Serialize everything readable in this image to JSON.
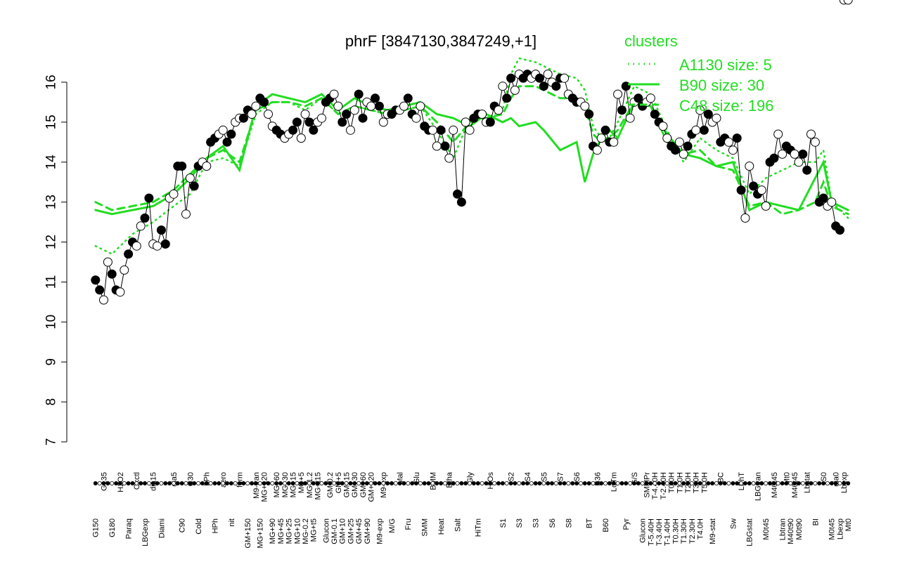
{
  "chart_data": {
    "type": "line",
    "title": "phrF [3847130,3847249,+1]",
    "xlabel": "",
    "ylabel": "",
    "ylim": [
      7,
      16.3
    ],
    "yticks": [
      7,
      8,
      9,
      10,
      11,
      12,
      13,
      14,
      15,
      16
    ],
    "grid": false,
    "legend": {
      "title": "clusters",
      "placement": "top-right",
      "entries": [
        {
          "label": "A1130 size: 5",
          "style": "dotted",
          "color": "#22dd22"
        },
        {
          "label": "B90 size: 30",
          "style": "solid",
          "color": "#22dd22"
        },
        {
          "label": "C48 size: 196",
          "style": "dashed",
          "color": "#22dd22"
        }
      ]
    },
    "x_labels": [
      {
        "label": "G150",
        "pos": 1,
        "row": 0
      },
      {
        "label": "G135",
        "pos": 3,
        "row": 1
      },
      {
        "label": "G180",
        "pos": 5,
        "row": 0
      },
      {
        "label": "H2O2",
        "pos": 7,
        "row": 1
      },
      {
        "label": "Paraq",
        "pos": 9,
        "row": 0
      },
      {
        "label": "Oxctl",
        "pos": 11,
        "row": 1
      },
      {
        "label": "LBGexp",
        "pos": 13,
        "row": 0
      },
      {
        "label": "dia15",
        "pos": 15,
        "row": 1
      },
      {
        "label": "Diami",
        "pos": 17,
        "row": 0
      },
      {
        "label": "dia5",
        "pos": 20,
        "row": 1
      },
      {
        "label": "C90",
        "pos": 22,
        "row": 0
      },
      {
        "label": "C30",
        "pos": 24,
        "row": 1
      },
      {
        "label": "Cold",
        "pos": 26,
        "row": 0
      },
      {
        "label": "LPh",
        "pos": 28,
        "row": 1
      },
      {
        "label": "HPh",
        "pos": 30,
        "row": 0
      },
      {
        "label": "aero",
        "pos": 32,
        "row": 1
      },
      {
        "label": "nit",
        "pos": 34,
        "row": 0
      },
      {
        "label": "ferm",
        "pos": 36,
        "row": 1
      },
      {
        "label": "GM+150",
        "pos": 38,
        "row": 0
      },
      {
        "label": "M9-tran",
        "pos": 40,
        "row": 1
      },
      {
        "label": "MG+150",
        "pos": 41,
        "row": 0
      },
      {
        "label": "MG+120",
        "pos": 42,
        "row": 1
      },
      {
        "label": "MG+90",
        "pos": 44,
        "row": 0
      },
      {
        "label": "MG+60",
        "pos": 45,
        "row": 1
      },
      {
        "label": "MG+45",
        "pos": 46,
        "row": 0
      },
      {
        "label": "MG+30",
        "pos": 47,
        "row": 1
      },
      {
        "label": "MG+25",
        "pos": 48,
        "row": 0
      },
      {
        "label": "MG+15",
        "pos": 49,
        "row": 1
      },
      {
        "label": "MG+10",
        "pos": 50,
        "row": 0
      },
      {
        "label": "MG+5",
        "pos": 51,
        "row": 1
      },
      {
        "label": "MG-0.2",
        "pos": 52,
        "row": 0
      },
      {
        "label": "MG-1.2",
        "pos": 53,
        "row": 1
      },
      {
        "label": "MG+t5",
        "pos": 54,
        "row": 0
      },
      {
        "label": "MG+t15",
        "pos": 55,
        "row": 1
      },
      {
        "label": "Glucon",
        "pos": 57,
        "row": 0
      },
      {
        "label": "GM-0.2",
        "pos": 58,
        "row": 1
      },
      {
        "label": "GM-0.1",
        "pos": 59,
        "row": 0
      },
      {
        "label": "GM+5",
        "pos": 60,
        "row": 1
      },
      {
        "label": "GM+10",
        "pos": 61,
        "row": 0
      },
      {
        "label": "GM+15",
        "pos": 62,
        "row": 1
      },
      {
        "label": "GM+25",
        "pos": 63,
        "row": 0
      },
      {
        "label": "GM+30",
        "pos": 64,
        "row": 1
      },
      {
        "label": "GM+45",
        "pos": 65,
        "row": 0
      },
      {
        "label": "GM+60",
        "pos": 66,
        "row": 1
      },
      {
        "label": "GM+90",
        "pos": 67,
        "row": 0
      },
      {
        "label": "GM+120",
        "pos": 68,
        "row": 1
      },
      {
        "label": "M9-exp",
        "pos": 70,
        "row": 0
      },
      {
        "label": "M9-exp",
        "pos": 71,
        "row": 1
      },
      {
        "label": "M/G",
        "pos": 73,
        "row": 0
      },
      {
        "label": "Mal",
        "pos": 75,
        "row": 1
      },
      {
        "label": "Fru",
        "pos": 77,
        "row": 0
      },
      {
        "label": "Glu",
        "pos": 79,
        "row": 1
      },
      {
        "label": "SMM",
        "pos": 81,
        "row": 0
      },
      {
        "label": "BMM",
        "pos": 83,
        "row": 1
      },
      {
        "label": "Heat",
        "pos": 85,
        "row": 0
      },
      {
        "label": "Etha",
        "pos": 87,
        "row": 1
      },
      {
        "label": "Salt",
        "pos": 89,
        "row": 0
      },
      {
        "label": "Gly",
        "pos": 92,
        "row": 1
      },
      {
        "label": "HiTm",
        "pos": 94,
        "row": 0
      },
      {
        "label": "HiOs",
        "pos": 97,
        "row": 1
      },
      {
        "label": "S1",
        "pos": 100,
        "row": 0
      },
      {
        "label": "S2",
        "pos": 102,
        "row": 1
      },
      {
        "label": "S3",
        "pos": 104,
        "row": 0
      },
      {
        "label": "S4",
        "pos": 106,
        "row": 1
      },
      {
        "label": "S3",
        "pos": 108,
        "row": 0
      },
      {
        "label": "S5",
        "pos": 110,
        "row": 1
      },
      {
        "label": "S6",
        "pos": 112,
        "row": 0
      },
      {
        "label": "S7",
        "pos": 114,
        "row": 1
      },
      {
        "label": "S8",
        "pos": 116,
        "row": 0
      },
      {
        "label": "S6",
        "pos": 118,
        "row": 1
      },
      {
        "label": "BT",
        "pos": 121,
        "row": 0
      },
      {
        "label": "B36",
        "pos": 123,
        "row": 1
      },
      {
        "label": "B60",
        "pos": 125,
        "row": 0
      },
      {
        "label": "LoTm",
        "pos": 127,
        "row": 1
      },
      {
        "label": "Pyr",
        "pos": 130,
        "row": 0
      },
      {
        "label": "G/S",
        "pos": 132,
        "row": 1
      },
      {
        "label": "Glucon",
        "pos": 134,
        "row": 0
      },
      {
        "label": "SMMPr",
        "pos": 135,
        "row": 1
      },
      {
        "label": "T-5.40H",
        "pos": 136,
        "row": 0
      },
      {
        "label": "T-4.40H",
        "pos": 137,
        "row": 1
      },
      {
        "label": "T-3.40H",
        "pos": 138,
        "row": 0
      },
      {
        "label": "T-2.40H",
        "pos": 139,
        "row": 1
      },
      {
        "label": "T-1.40H",
        "pos": 140,
        "row": 0
      },
      {
        "label": "T0.0H",
        "pos": 141,
        "row": 1
      },
      {
        "label": "T0.30H",
        "pos": 142,
        "row": 0
      },
      {
        "label": "T1.0H",
        "pos": 143,
        "row": 1
      },
      {
        "label": "T1.30H",
        "pos": 144,
        "row": 0
      },
      {
        "label": "T2.0H",
        "pos": 145,
        "row": 1
      },
      {
        "label": "T2.30H",
        "pos": 146,
        "row": 0
      },
      {
        "label": "T3.0H",
        "pos": 147,
        "row": 1
      },
      {
        "label": "T4.0H",
        "pos": 148,
        "row": 0
      },
      {
        "label": "T5.0H",
        "pos": 149,
        "row": 1
      },
      {
        "label": "M9-stat",
        "pos": 151,
        "row": 0
      },
      {
        "label": "BC",
        "pos": 153,
        "row": 1
      },
      {
        "label": "Sw",
        "pos": 156,
        "row": 0
      },
      {
        "label": "LPhT",
        "pos": 158,
        "row": 1
      },
      {
        "label": "LBGstat",
        "pos": 160,
        "row": 0
      },
      {
        "label": "LBGtran",
        "pos": 162,
        "row": 1
      },
      {
        "label": "M0t45",
        "pos": 164,
        "row": 0
      },
      {
        "label": "M40t45",
        "pos": 166,
        "row": 1
      },
      {
        "label": "Lbtran",
        "pos": 168,
        "row": 0
      },
      {
        "label": "Mt0",
        "pos": 169,
        "row": 1
      },
      {
        "label": "M40t90",
        "pos": 170,
        "row": 0
      },
      {
        "label": "M40t45",
        "pos": 171,
        "row": 1
      },
      {
        "label": "M0t90",
        "pos": 172,
        "row": 0
      },
      {
        "label": "Lbstat",
        "pos": 174,
        "row": 1
      },
      {
        "label": "BI",
        "pos": 176,
        "row": 0
      },
      {
        "label": "S0",
        "pos": 178,
        "row": 1
      },
      {
        "label": "M0t45",
        "pos": 180,
        "row": 0
      },
      {
        "label": "dia0",
        "pos": 181,
        "row": 1
      },
      {
        "label": "Lbexp",
        "pos": 182,
        "row": 0
      },
      {
        "label": "Lbexp",
        "pos": 183,
        "row": 1
      },
      {
        "label": "Mt0",
        "pos": 184,
        "row": 0
      }
    ],
    "x_range": [
      0,
      185
    ],
    "points_x": [
      1,
      2,
      3,
      4,
      5,
      6,
      7,
      8,
      9,
      10,
      11,
      12,
      13,
      14,
      15,
      16,
      17,
      18,
      19,
      20,
      21,
      22,
      23,
      24,
      25,
      26,
      27,
      28,
      29,
      30,
      31,
      32,
      33,
      34,
      35,
      36,
      37,
      38,
      39,
      40,
      41,
      42,
      43,
      44,
      45,
      46,
      47,
      48,
      49,
      50,
      51,
      52,
      53,
      54,
      55,
      56,
      57,
      58,
      59,
      60,
      61,
      62,
      63,
      64,
      65,
      66,
      67,
      68,
      69,
      70,
      71,
      72,
      73,
      74,
      75,
      76,
      77,
      78,
      79,
      80,
      81,
      82,
      83,
      84,
      85,
      86,
      87,
      88,
      89,
      90,
      91,
      92,
      93,
      94,
      95,
      96,
      97,
      98,
      99,
      100,
      101,
      102,
      103,
      104,
      105,
      106,
      107,
      108,
      109,
      110,
      111,
      112,
      113,
      114,
      115,
      116,
      117,
      118,
      119,
      120,
      121,
      122,
      123,
      124,
      125,
      126,
      127,
      128,
      129,
      130,
      131,
      132,
      133,
      134,
      135,
      136,
      137,
      138,
      139,
      140,
      141,
      142,
      143,
      144,
      145,
      146,
      147,
      148,
      149,
      150,
      151,
      152,
      153,
      154,
      155,
      156,
      157,
      158,
      159,
      160,
      161,
      162,
      163,
      164,
      165,
      166,
      167,
      168,
      169,
      170,
      171,
      172,
      173,
      174,
      175,
      176,
      177,
      178,
      179,
      180,
      181,
      182,
      183,
      184
    ],
    "points_y": [
      11.05,
      10.8,
      10.55,
      11.5,
      11.2,
      10.8,
      10.75,
      11.3,
      11.7,
      12.0,
      11.9,
      12.4,
      12.6,
      13.1,
      11.95,
      11.9,
      12.3,
      11.95,
      13.1,
      13.2,
      13.9,
      13.9,
      12.7,
      13.6,
      13.4,
      13.9,
      14.0,
      13.9,
      14.5,
      14.6,
      14.7,
      14.8,
      14.5,
      14.7,
      15.0,
      15.1,
      15.1,
      15.3,
      15.2,
      15.4,
      15.6,
      15.5,
      15.2,
      14.9,
      14.8,
      14.7,
      14.6,
      14.7,
      14.8,
      15.0,
      14.6,
      15.2,
      15.0,
      14.8,
      15.0,
      15.1,
      15.5,
      15.6,
      15.7,
      15.4,
      15.0,
      15.2,
      14.8,
      15.3,
      15.7,
      15.1,
      15.5,
      15.4,
      15.6,
      15.4,
      15.0,
      15.2,
      15.2,
      15.3,
      15.3,
      15.4,
      15.6,
      15.2,
      15.1,
      15.4,
      14.9,
      14.8,
      14.8,
      14.4,
      14.8,
      14.4,
      14.1,
      14.8,
      13.2,
      13.0,
      15.0,
      14.8,
      15.1,
      15.2,
      15.2,
      15.0,
      15.0,
      15.4,
      15.3,
      15.9,
      15.6,
      16.1,
      15.8,
      16.2,
      16.1,
      16.2,
      16.1,
      16.2,
      16.1,
      15.9,
      16.2,
      16.0,
      15.9,
      16.1,
      16.1,
      15.7,
      15.6,
      15.5,
      15.5,
      15.4,
      15.2,
      14.4,
      14.3,
      14.6,
      14.8,
      14.5,
      14.5,
      15.7,
      15.3,
      15.9,
      15.1,
      15.5,
      15.6,
      15.4,
      15.5,
      15.6,
      15.2,
      15.0,
      14.9,
      14.6,
      14.4,
      14.3,
      14.5,
      14.2,
      14.4,
      14.7,
      14.8,
      15.3,
      14.8,
      15.2,
      15.0,
      15.1,
      14.5,
      14.6,
      14.5,
      14.3,
      14.6,
      13.3,
      12.6,
      13.9,
      13.4,
      13.2,
      13.3,
      12.9,
      14.0,
      14.1,
      14.7,
      14.2,
      14.4,
      14.3,
      14.2,
      14.0,
      14.2,
      13.8,
      14.7,
      14.5,
      13.0,
      13.1,
      12.9,
      13.0,
      12.4,
      12.3
    ],
    "series": [
      {
        "name": "",
        "style": "solid",
        "x": [
          1,
          5,
          10,
          15,
          20,
          24,
          28,
          32,
          36,
          40,
          44,
          48,
          52,
          56,
          60,
          64,
          68,
          72,
          76,
          80,
          84,
          88,
          92,
          96,
          100,
          102,
          104,
          108,
          110,
          114,
          118,
          120,
          122,
          124,
          126,
          128,
          132,
          136,
          140,
          144,
          148,
          152,
          156,
          160,
          164,
          168,
          172,
          176,
          178,
          180,
          184
        ],
        "y": [
          12.8,
          12.7,
          12.8,
          12.9,
          13.2,
          13.6,
          14.1,
          14.4,
          13.8,
          15.4,
          15.7,
          15.6,
          15.5,
          15.7,
          15.3,
          15.6,
          15.4,
          15.3,
          15.4,
          15.5,
          15.2,
          15.1,
          14.9,
          15.2,
          15.0,
          15.1,
          14.9,
          15.0,
          14.8,
          14.3,
          14.5,
          13.5,
          14.2,
          14.6,
          14.8,
          14.6,
          15.5,
          15.4,
          14.5,
          14.2,
          14.1,
          13.9,
          14.0,
          12.8,
          13.0,
          12.9,
          12.8,
          13.6,
          14.0,
          13.0,
          12.8
        ]
      },
      {
        "name": "",
        "style": "dotted",
        "x": [
          1,
          5,
          10,
          15,
          20,
          24,
          28,
          32,
          36,
          40,
          44,
          48,
          52,
          56,
          60,
          64,
          68,
          72,
          76,
          80,
          84,
          88,
          92,
          96,
          100,
          102,
          104,
          108,
          110,
          114,
          118,
          120,
          122,
          124,
          126,
          128,
          132,
          136,
          140,
          144,
          148,
          152,
          156,
          160,
          164,
          168,
          172,
          176,
          178,
          180,
          184
        ],
        "y": [
          11.9,
          11.7,
          12.2,
          12.5,
          12.9,
          13.2,
          14.0,
          14.1,
          13.9,
          15.2,
          15.5,
          15.5,
          15.3,
          15.6,
          15.2,
          15.4,
          15.3,
          15.2,
          15.3,
          15.4,
          14.8,
          14.1,
          15.1,
          15.1,
          15.3,
          16.2,
          16.6,
          16.5,
          16.4,
          16.2,
          16.1,
          15.8,
          14.9,
          14.6,
          14.6,
          15.0,
          15.9,
          15.7,
          14.8,
          14.0,
          14.6,
          14.3,
          14.1,
          13.2,
          13.6,
          13.8,
          14.0,
          14.0,
          14.3,
          13.0,
          12.6
        ]
      },
      {
        "name": "",
        "style": "dashed",
        "x": [
          1,
          5,
          10,
          15,
          20,
          24,
          28,
          32,
          36,
          40,
          44,
          48,
          52,
          56,
          60,
          64,
          68,
          72,
          76,
          80,
          84,
          88,
          92,
          96,
          100,
          102,
          104,
          108,
          110,
          114,
          118,
          120,
          122,
          124,
          126,
          128,
          132,
          136,
          140,
          144,
          148,
          152,
          156,
          160,
          164,
          168,
          172,
          176,
          178,
          180,
          184
        ],
        "y": [
          13.0,
          12.8,
          12.9,
          13.0,
          13.3,
          13.7,
          14.1,
          14.3,
          14.0,
          15.3,
          15.5,
          15.5,
          15.4,
          15.6,
          15.2,
          15.4,
          15.3,
          15.2,
          15.3,
          15.4,
          15.0,
          14.5,
          15.0,
          15.1,
          15.2,
          15.6,
          15.9,
          15.9,
          15.8,
          15.6,
          15.6,
          15.4,
          14.7,
          14.5,
          14.6,
          14.8,
          15.5,
          15.4,
          14.7,
          14.2,
          14.3,
          13.9,
          13.8,
          12.9,
          13.0,
          12.7,
          12.8,
          13.0,
          13.5,
          12.9,
          12.7
        ]
      }
    ]
  }
}
